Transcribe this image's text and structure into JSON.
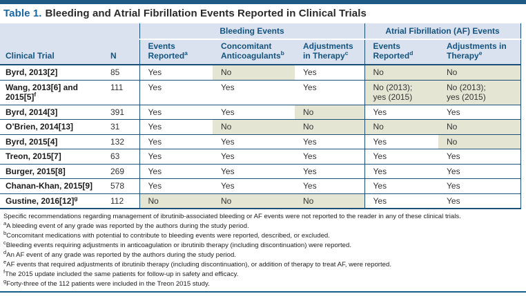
{
  "title": {
    "label": "Table 1.",
    "text": "Bleeding and Atrial Fibrillation Events Reported in Clinical Trials"
  },
  "table": {
    "group_headers": [
      {
        "label": "Bleeding Events"
      },
      {
        "label": "Atrial Fibrillation (AF) Events"
      }
    ],
    "columns": [
      {
        "label": "Clinical Trial",
        "sup": ""
      },
      {
        "label": "N",
        "sup": ""
      },
      {
        "label": "Events Reported",
        "sup": "a"
      },
      {
        "label": "Concomitant Anticoagulants",
        "sup": "b"
      },
      {
        "label": "Adjustments in Therapy",
        "sup": "c"
      },
      {
        "label": "Events Reported",
        "sup": "d"
      },
      {
        "label": "Adjustments in Therapy",
        "sup": "e"
      }
    ],
    "rows": [
      {
        "trial": "Byrd, 2013[2]",
        "trial_sup": "",
        "n": "85",
        "cells": [
          {
            "text": "Yes",
            "shaded": false
          },
          {
            "text": "No",
            "shaded": true
          },
          {
            "text": "Yes",
            "shaded": false
          },
          {
            "text": "No",
            "shaded": true
          },
          {
            "text": "No",
            "shaded": true
          }
        ]
      },
      {
        "trial": "Wang, 2013[6] and 2015[5]",
        "trial_sup": "f",
        "n": "111",
        "cells": [
          {
            "text": "Yes",
            "shaded": false
          },
          {
            "text": "Yes",
            "shaded": false
          },
          {
            "text": "Yes",
            "shaded": false
          },
          {
            "text": "No (2013);\nyes (2015)",
            "shaded": true
          },
          {
            "text": "No (2013);\nyes (2015)",
            "shaded": true
          }
        ]
      },
      {
        "trial": "Byrd, 2014[3]",
        "trial_sup": "",
        "n": "391",
        "cells": [
          {
            "text": "Yes",
            "shaded": false
          },
          {
            "text": "Yes",
            "shaded": false
          },
          {
            "text": "No",
            "shaded": true
          },
          {
            "text": "Yes",
            "shaded": false
          },
          {
            "text": "Yes",
            "shaded": false
          }
        ]
      },
      {
        "trial": "O’Brien, 2014[13]",
        "trial_sup": "",
        "n": "31",
        "cells": [
          {
            "text": "Yes",
            "shaded": false
          },
          {
            "text": "No",
            "shaded": true
          },
          {
            "text": "No",
            "shaded": true
          },
          {
            "text": "No",
            "shaded": true
          },
          {
            "text": "No",
            "shaded": true
          }
        ]
      },
      {
        "trial": "Byrd, 2015[4]",
        "trial_sup": "",
        "n": "132",
        "cells": [
          {
            "text": "Yes",
            "shaded": false
          },
          {
            "text": "Yes",
            "shaded": false
          },
          {
            "text": "Yes",
            "shaded": false
          },
          {
            "text": "Yes",
            "shaded": false
          },
          {
            "text": "No",
            "shaded": true
          }
        ]
      },
      {
        "trial": "Treon, 2015[7]",
        "trial_sup": "",
        "n": "63",
        "cells": [
          {
            "text": "Yes",
            "shaded": false
          },
          {
            "text": "Yes",
            "shaded": false
          },
          {
            "text": "Yes",
            "shaded": false
          },
          {
            "text": "Yes",
            "shaded": false
          },
          {
            "text": "Yes",
            "shaded": false
          }
        ]
      },
      {
        "trial": "Burger, 2015[8]",
        "trial_sup": "",
        "n": "269",
        "cells": [
          {
            "text": "Yes",
            "shaded": false
          },
          {
            "text": "Yes",
            "shaded": false
          },
          {
            "text": "Yes",
            "shaded": false
          },
          {
            "text": "Yes",
            "shaded": false
          },
          {
            "text": "Yes",
            "shaded": false
          }
        ]
      },
      {
        "trial": "Chanan-Khan, 2015[9]",
        "trial_sup": "",
        "n": "578",
        "cells": [
          {
            "text": "Yes",
            "shaded": false
          },
          {
            "text": "Yes",
            "shaded": false
          },
          {
            "text": "Yes",
            "shaded": false
          },
          {
            "text": "Yes",
            "shaded": false
          },
          {
            "text": "Yes",
            "shaded": false
          }
        ]
      },
      {
        "trial": "Gustine, 2016[12]",
        "trial_sup": "g",
        "n": "112",
        "cells": [
          {
            "text": "No",
            "shaded": true
          },
          {
            "text": "No",
            "shaded": true
          },
          {
            "text": "No",
            "shaded": true
          },
          {
            "text": "Yes",
            "shaded": false
          },
          {
            "text": "Yes",
            "shaded": false
          }
        ]
      }
    ]
  },
  "footnotes": [
    {
      "sup": "",
      "text": "Specific recommendations regarding management of ibrutinib-associated bleeding or AF events were not reported to the reader in any of these clinical trials."
    },
    {
      "sup": "a",
      "text": "A bleeding event of any grade was reported by the authors during the study period."
    },
    {
      "sup": "b",
      "text": "Concomitant medications with potential to contribute to bleeding events were reported, described, or excluded."
    },
    {
      "sup": "c",
      "text": "Bleeding events requiring adjustments in anticoagulation or ibrutinib therapy (including discontinuation) were reported."
    },
    {
      "sup": "d",
      "text": "An AF event of any grade was reported by the authors during the study period."
    },
    {
      "sup": "e",
      "text": "AF events that required adjustments of ibrutinib therapy (including discontinuation), or addition of therapy to treat AF, were reported."
    },
    {
      "sup": "f",
      "text": "The 2015 update included the same patients for follow-up in safety and efficacy."
    },
    {
      "sup": "g",
      "text": "Forty-three of the 112 patients were included in the Treon 2015 study."
    }
  ],
  "colors": {
    "top_bar": "#1f5a84",
    "line_blue": "#1a4e74",
    "header_bg": "#d9e2ee",
    "header_text": "#14537f",
    "shaded_cell": "#e5e5d4",
    "accent_blue": "#1668a4"
  }
}
